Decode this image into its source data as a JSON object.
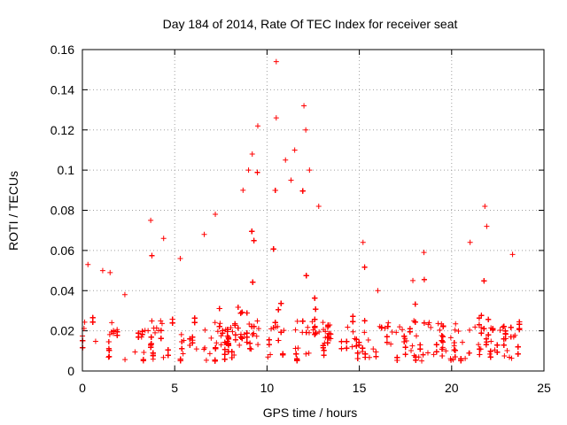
{
  "chart_data": {
    "type": "scatter",
    "title": "Day 184 of 2014, Rate Of TEC Index for receiver seat",
    "xlabel": "GPS time / hours",
    "ylabel": "ROTI / TECUs",
    "xlim": [
      0,
      25
    ],
    "ylim": [
      0,
      0.16
    ],
    "x_ticks": [
      0,
      5,
      10,
      15,
      20,
      25
    ],
    "x_tick_labels": [
      "0",
      "5",
      "10",
      "15",
      "20",
      "25"
    ],
    "y_ticks": [
      0,
      0.02,
      0.04,
      0.06,
      0.08,
      0.1,
      0.12,
      0.14,
      0.16
    ],
    "y_tick_labels": [
      "0",
      "0.02",
      "0.04",
      "0.06",
      "0.08",
      "0.1",
      "0.12",
      "0.14",
      "0.16"
    ],
    "grid": true,
    "marker": "+",
    "color": "#ff0000",
    "data_range_x": [
      0,
      23.8
    ],
    "baseline_band": [
      0.005,
      0.025
    ],
    "series": [
      {
        "name": "ROTI",
        "notable_points": [
          {
            "x": 10.5,
            "y": 0.154
          },
          {
            "x": 12.0,
            "y": 0.132
          },
          {
            "x": 10.5,
            "y": 0.126
          },
          {
            "x": 9.5,
            "y": 0.122
          },
          {
            "x": 12.1,
            "y": 0.12
          },
          {
            "x": 11.5,
            "y": 0.11
          },
          {
            "x": 9.2,
            "y": 0.108
          },
          {
            "x": 11.0,
            "y": 0.105
          },
          {
            "x": 9.0,
            "y": 0.1
          },
          {
            "x": 12.3,
            "y": 0.1
          },
          {
            "x": 11.3,
            "y": 0.095
          },
          {
            "x": 8.7,
            "y": 0.09
          },
          {
            "x": 12.8,
            "y": 0.082
          },
          {
            "x": 21.8,
            "y": 0.082
          },
          {
            "x": 7.2,
            "y": 0.078
          },
          {
            "x": 3.7,
            "y": 0.075
          },
          {
            "x": 21.9,
            "y": 0.072
          },
          {
            "x": 4.4,
            "y": 0.066
          },
          {
            "x": 6.6,
            "y": 0.068
          },
          {
            "x": 15.2,
            "y": 0.064
          },
          {
            "x": 21.0,
            "y": 0.064
          },
          {
            "x": 18.5,
            "y": 0.059
          },
          {
            "x": 23.3,
            "y": 0.058
          },
          {
            "x": 5.3,
            "y": 0.056
          },
          {
            "x": 0.3,
            "y": 0.053
          },
          {
            "x": 1.1,
            "y": 0.05
          },
          {
            "x": 1.5,
            "y": 0.049
          },
          {
            "x": 17.9,
            "y": 0.045
          },
          {
            "x": 2.3,
            "y": 0.038
          },
          {
            "x": 16.0,
            "y": 0.04
          }
        ]
      }
    ]
  }
}
